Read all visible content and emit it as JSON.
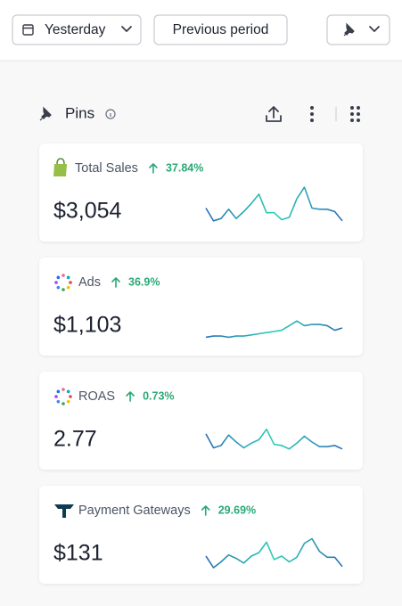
{
  "toolbar": {
    "date_button": "Yesterday",
    "compare_button": "Previous period"
  },
  "section": {
    "title": "Pins"
  },
  "cards": [
    {
      "title": "Total Sales",
      "change": "37.84%",
      "value": "$3,054",
      "sparkline": [
        15,
        4,
        6,
        14,
        6,
        12,
        19,
        27,
        11,
        11,
        5,
        7,
        23,
        33,
        15,
        14,
        14,
        12,
        4
      ]
    },
    {
      "title": "Ads",
      "change": "36.9%",
      "value": "$1,103",
      "sparkline": [
        2,
        3,
        3,
        2,
        3,
        3,
        4,
        5,
        6,
        7,
        8,
        12,
        16,
        12,
        13,
        13,
        12,
        8,
        10
      ]
    },
    {
      "title": "ROAS",
      "change": "0.73%",
      "value": "2.77",
      "sparkline": [
        17,
        5,
        7,
        16,
        10,
        5,
        9,
        12,
        21,
        8,
        7,
        4,
        9,
        15,
        10,
        6,
        6,
        7,
        4
      ]
    },
    {
      "title": "Payment Gateways",
      "change": "29.69%",
      "value": "$131",
      "sparkline": [
        10,
        0,
        5,
        11,
        8,
        4,
        10,
        13,
        22,
        7,
        10,
        5,
        9,
        21,
        25,
        14,
        9,
        9,
        1
      ]
    }
  ]
}
